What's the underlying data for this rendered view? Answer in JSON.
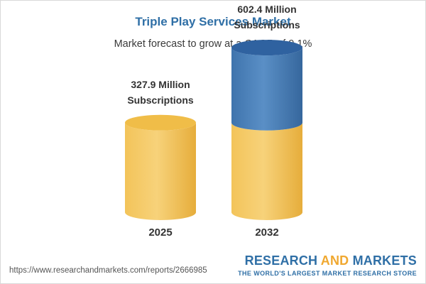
{
  "header": {
    "title": "Triple Play Services Market",
    "subtitle": "Market forecast to grow at a CAGR of 9.1%"
  },
  "colors": {
    "title": "#2f6fa6",
    "bar_gold": "#f5c85a",
    "bar_blue": "#4a7fb8"
  },
  "chart_data": {
    "type": "bar",
    "categories": [
      "2025",
      "2032"
    ],
    "values": [
      327.9,
      602.4
    ],
    "unit": "Million Subscriptions",
    "data_labels": [
      [
        "327.9 Million",
        "Subscriptions"
      ],
      [
        "602.4 Million",
        "Subscriptions"
      ]
    ],
    "title": "Triple Play Services Market",
    "subtitle": "Market forecast to grow at a CAGR of 9.1%",
    "cagr": "9.1%"
  },
  "footer": {
    "url": "https://www.researchandmarkets.com/reports/2666985",
    "brand_part1": "RESEARCH ",
    "brand_part2": "AND",
    "brand_part3": " MARKETS",
    "tagline": "THE WORLD'S LARGEST MARKET RESEARCH STORE"
  }
}
